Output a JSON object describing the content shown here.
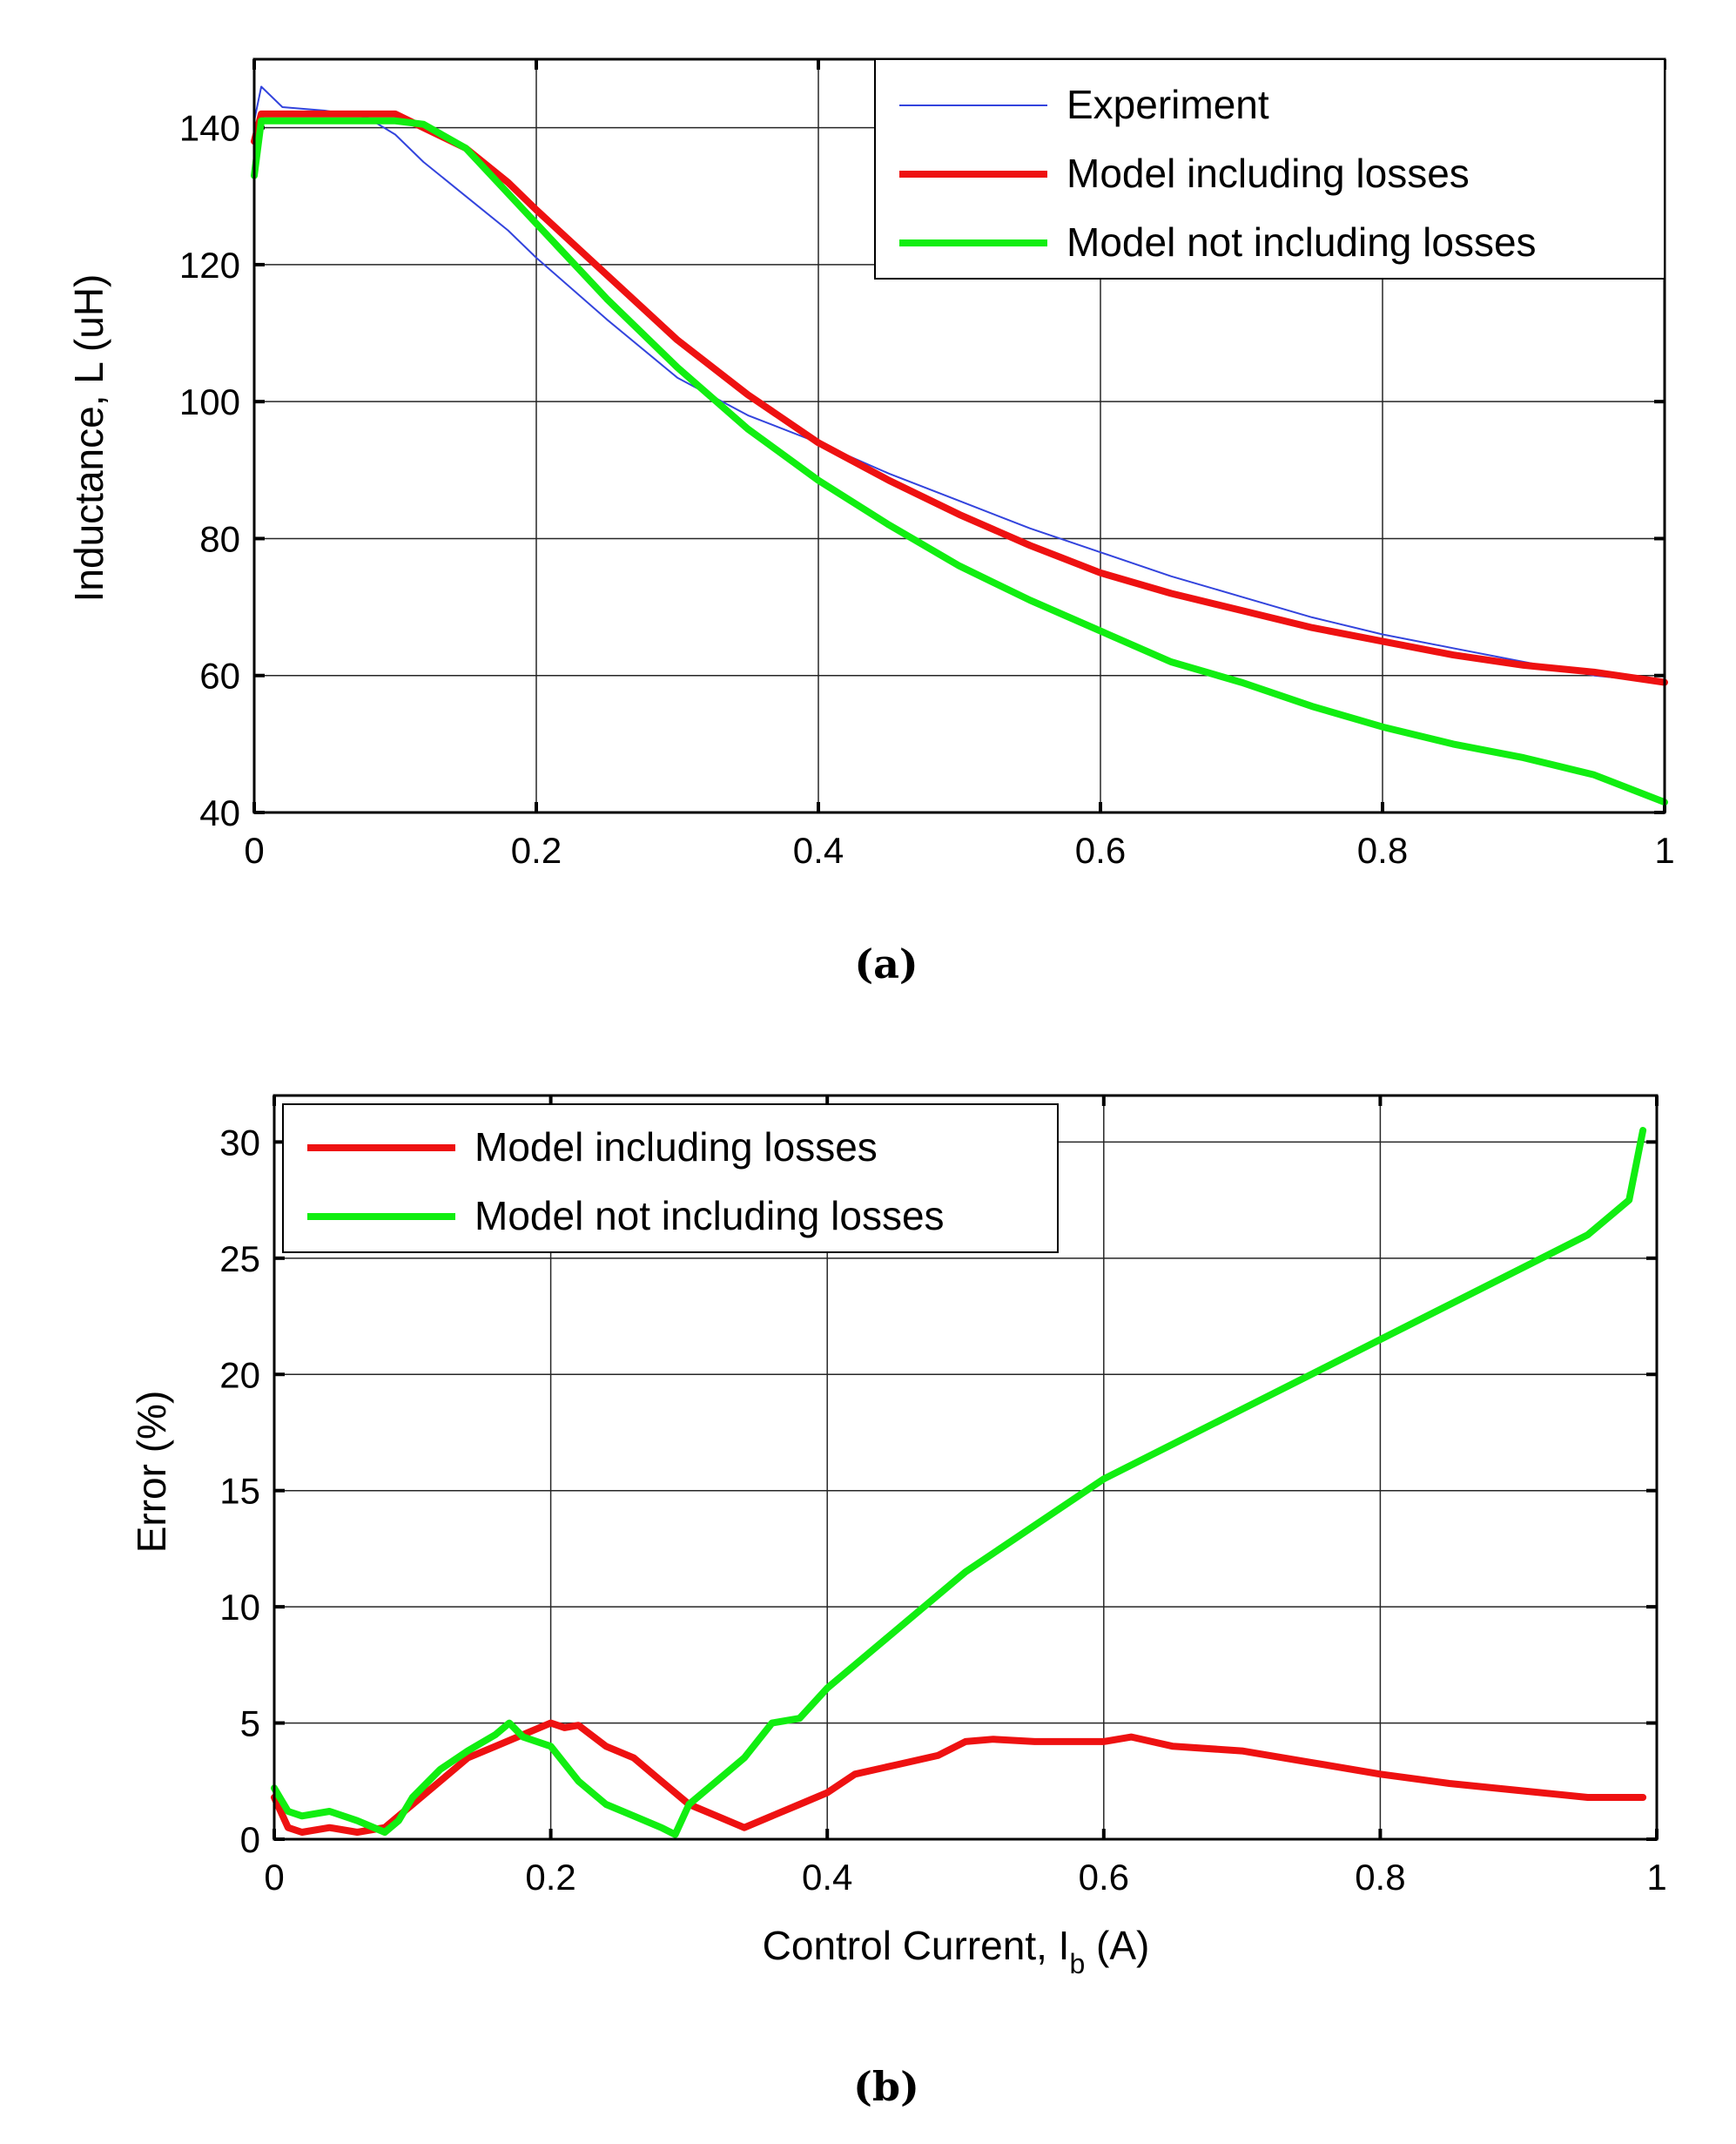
{
  "chart_data": [
    {
      "type": "line",
      "caption": "(a)",
      "title": "",
      "xlabel": "",
      "ylabel": "Inductance, L (uH)",
      "xlim": [
        0,
        1
      ],
      "ylim": [
        40,
        150
      ],
      "xticks": [
        0,
        0.2,
        0.4,
        0.6,
        0.8,
        1
      ],
      "xtick_labels": [
        "0",
        "0.2",
        "0.4",
        "0.6",
        "0.8",
        "1"
      ],
      "yticks": [
        40,
        60,
        80,
        100,
        120,
        140
      ],
      "ytick_labels": [
        "40",
        "60",
        "80",
        "100",
        "120",
        "140"
      ],
      "grid": true,
      "legend_position": "top-right",
      "series": [
        {
          "name": "Experiment",
          "color": "#3344dd",
          "style": "thin",
          "x": [
            0,
            0.005,
            0.02,
            0.05,
            0.08,
            0.1,
            0.12,
            0.15,
            0.18,
            0.2,
            0.25,
            0.3,
            0.35,
            0.4,
            0.45,
            0.5,
            0.55,
            0.6,
            0.65,
            0.7,
            0.75,
            0.8,
            0.85,
            0.9,
            0.95,
            1.0
          ],
          "y": [
            141,
            146,
            143,
            142.5,
            141.5,
            139,
            135,
            130,
            125,
            121,
            112,
            103.5,
            98,
            94,
            89.5,
            85.5,
            81.5,
            78,
            74.5,
            71.5,
            68.5,
            66,
            64,
            62,
            60,
            59
          ]
        },
        {
          "name": "Model including losses",
          "color": "#ee1111",
          "style": "thick",
          "x": [
            0,
            0.005,
            0.05,
            0.1,
            0.12,
            0.15,
            0.18,
            0.2,
            0.25,
            0.3,
            0.35,
            0.4,
            0.45,
            0.5,
            0.55,
            0.6,
            0.65,
            0.7,
            0.75,
            0.8,
            0.85,
            0.9,
            0.95,
            1.0
          ],
          "y": [
            138,
            142,
            142,
            142,
            140,
            137,
            132,
            128,
            118.5,
            109,
            101,
            94,
            88.5,
            83.5,
            79,
            75,
            72,
            69.5,
            67,
            65,
            63,
            61.5,
            60.5,
            59
          ]
        },
        {
          "name": "Model not including losses",
          "color": "#11ee11",
          "style": "thick",
          "x": [
            0,
            0.005,
            0.05,
            0.1,
            0.12,
            0.15,
            0.2,
            0.25,
            0.3,
            0.35,
            0.4,
            0.45,
            0.5,
            0.55,
            0.6,
            0.65,
            0.7,
            0.75,
            0.8,
            0.85,
            0.9,
            0.95,
            1.0
          ],
          "y": [
            133,
            141,
            141,
            141,
            140.5,
            137,
            126,
            115,
            105,
            96,
            88.5,
            82,
            76,
            71,
            66.5,
            62,
            59,
            55.5,
            52.5,
            50,
            48,
            45.5,
            41.5
          ]
        }
      ]
    },
    {
      "type": "line",
      "caption": "(b)",
      "title": "",
      "xlabel": "Control Current, I",
      "xlabel_subscript": "b",
      "xlabel_suffix": " (A)",
      "ylabel": "Error (%)",
      "xlim": [
        0,
        1
      ],
      "ylim": [
        0,
        32
      ],
      "xticks": [
        0,
        0.2,
        0.4,
        0.6,
        0.8,
        1
      ],
      "xtick_labels": [
        "0",
        "0.2",
        "0.4",
        "0.6",
        "0.8",
        "1"
      ],
      "yticks": [
        0,
        5,
        10,
        15,
        20,
        25,
        30
      ],
      "ytick_labels": [
        "0",
        "5",
        "10",
        "15",
        "20",
        "25",
        "30"
      ],
      "grid": true,
      "legend_position": "top-left",
      "series": [
        {
          "name": "Model including losses",
          "color": "#ee1111",
          "style": "thick",
          "x": [
            0,
            0.01,
            0.02,
            0.04,
            0.06,
            0.08,
            0.1,
            0.12,
            0.14,
            0.16,
            0.18,
            0.2,
            0.21,
            0.22,
            0.24,
            0.26,
            0.28,
            0.3,
            0.32,
            0.34,
            0.36,
            0.38,
            0.4,
            0.42,
            0.45,
            0.48,
            0.5,
            0.52,
            0.55,
            0.6,
            0.62,
            0.65,
            0.7,
            0.75,
            0.8,
            0.85,
            0.9,
            0.95,
            0.99
          ],
          "y": [
            1.8,
            0.5,
            0.3,
            0.5,
            0.3,
            0.5,
            1.5,
            2.5,
            3.5,
            4.0,
            4.5,
            5.0,
            4.8,
            4.9,
            4.0,
            3.5,
            2.5,
            1.5,
            1.0,
            0.5,
            1.0,
            1.5,
            2.0,
            2.8,
            3.2,
            3.6,
            4.2,
            4.3,
            4.2,
            4.2,
            4.4,
            4.0,
            3.8,
            3.3,
            2.8,
            2.4,
            2.1,
            1.8,
            1.8
          ]
        },
        {
          "name": "Model not including losses",
          "color": "#11ee11",
          "style": "thick",
          "x": [
            0,
            0.01,
            0.02,
            0.04,
            0.06,
            0.08,
            0.09,
            0.1,
            0.12,
            0.14,
            0.16,
            0.17,
            0.18,
            0.2,
            0.22,
            0.24,
            0.26,
            0.28,
            0.29,
            0.3,
            0.32,
            0.34,
            0.36,
            0.38,
            0.4,
            0.42,
            0.45,
            0.5,
            0.55,
            0.6,
            0.65,
            0.7,
            0.75,
            0.8,
            0.85,
            0.9,
            0.95,
            0.98,
            0.99
          ],
          "y": [
            2.2,
            1.2,
            1.0,
            1.2,
            0.8,
            0.3,
            0.8,
            1.8,
            3.0,
            3.8,
            4.5,
            5.0,
            4.4,
            4.0,
            2.5,
            1.5,
            1.0,
            0.5,
            0.2,
            1.5,
            2.5,
            3.5,
            5.0,
            5.2,
            6.5,
            7.5,
            9.0,
            11.5,
            13.5,
            15.5,
            17.0,
            18.5,
            20.0,
            21.5,
            23.0,
            24.5,
            26.0,
            27.5,
            30.5
          ]
        }
      ]
    }
  ]
}
